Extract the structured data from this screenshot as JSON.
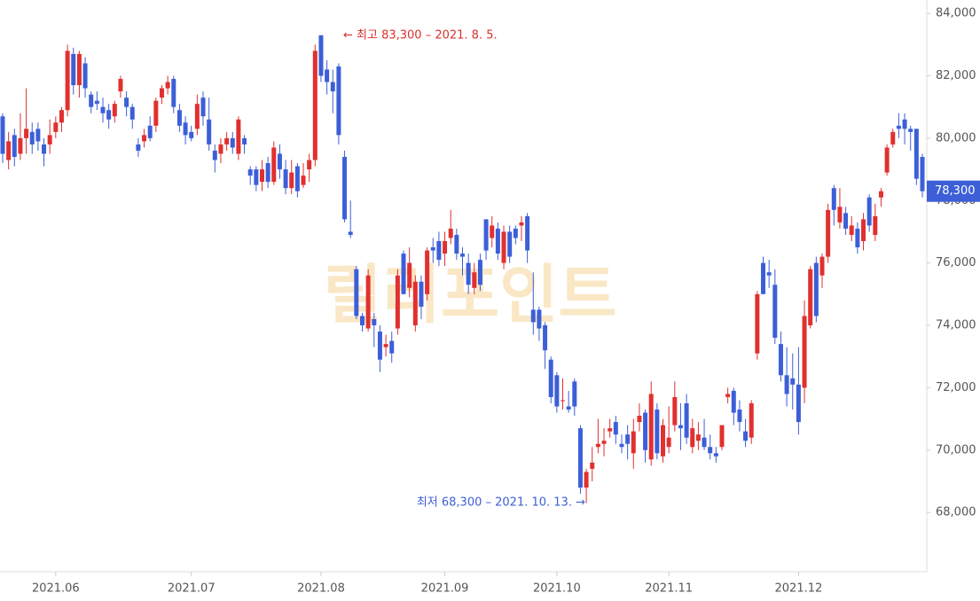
{
  "chart_data": {
    "type": "candlestick",
    "ylim": [
      66100,
      84430
    ],
    "yticks": [
      {
        "value": 68000,
        "label": "68,000"
      },
      {
        "value": 70000,
        "label": "70,000"
      },
      {
        "value": 72000,
        "label": "72,000"
      },
      {
        "value": 74000,
        "label": "74,000"
      },
      {
        "value": 76000,
        "label": "76,000"
      },
      {
        "value": 78000,
        "label": "78,000"
      },
      {
        "value": 80000,
        "label": "80,000"
      },
      {
        "value": 82000,
        "label": "82,000"
      },
      {
        "value": 84000,
        "label": "84,000"
      }
    ],
    "xticks": [
      {
        "value": 9,
        "label": "2021.06"
      },
      {
        "value": 32,
        "label": "2021.07"
      },
      {
        "value": 54,
        "label": "2021.08"
      },
      {
        "value": 75,
        "label": "2021.09"
      },
      {
        "value": 94,
        "label": "2021.10"
      },
      {
        "value": 113,
        "label": "2021.11"
      },
      {
        "value": 135,
        "label": "2021.12"
      }
    ],
    "up_color": "#e0302f",
    "down_color": "#3c5fd8",
    "open": [
      80700,
      79300,
      80100,
      79500,
      80000,
      80200,
      80300,
      79800,
      79800,
      80200,
      80500,
      80900,
      82700,
      81700,
      82400,
      81400,
      81200,
      81000,
      80900,
      80700,
      81500,
      81300,
      81000,
      79800,
      79900,
      80400,
      80400,
      81300,
      81600,
      81900,
      80900,
      80500,
      80200,
      80300,
      81300,
      80600,
      79600,
      79500,
      79800,
      80000,
      79500,
      80000,
      79000,
      79000,
      78600,
      79200,
      78600,
      79500,
      79000,
      78400,
      79100,
      78500,
      79000,
      79300,
      83300,
      82200,
      81800,
      82300,
      79400,
      77000,
      75800,
      74300,
      73900,
      74200,
      73800,
      73300,
      73500,
      73900,
      76300,
      75200,
      74000,
      75400,
      75000,
      76500,
      76700,
      76300,
      76800,
      76900,
      76300,
      76000,
      75200,
      76100,
      77400,
      76800,
      77100,
      76000,
      77000,
      77100,
      77200,
      77500,
      74500,
      74500,
      74000,
      72900,
      72400,
      71600,
      71400,
      72200,
      70700,
      68800,
      69400,
      70100,
      70200,
      70600,
      70900,
      70200,
      70500,
      69900,
      70900,
      71200,
      69700,
      71300,
      69800,
      70100,
      70800,
      70800,
      71500,
      70100,
      70300,
      70400,
      70100,
      69900,
      70100,
      71700,
      71900,
      71300,
      70600,
      70400,
      73100,
      76000,
      75700,
      75300,
      73400,
      72400,
      72300,
      72100,
      72000,
      74000,
      76000,
      75600,
      76200,
      78400,
      77300,
      77600,
      76900,
      77100,
      76700,
      78100,
      76900,
      78100,
      78900,
      79800,
      80400,
      80600,
      80300,
      80300,
      79400
    ],
    "high": [
      80800,
      80200,
      80300,
      80800,
      81600,
      80500,
      80500,
      80000,
      80600,
      80700,
      81000,
      83000,
      82900,
      82800,
      82600,
      81500,
      81500,
      81300,
      81100,
      81200,
      82000,
      81500,
      81100,
      80000,
      80300,
      80700,
      81300,
      81700,
      82000,
      82000,
      81100,
      80700,
      80400,
      81400,
      81500,
      81300,
      79800,
      80000,
      80200,
      80200,
      80700,
      80100,
      79100,
      79100,
      79300,
      79400,
      79900,
      79800,
      79300,
      79300,
      79200,
      79200,
      79500,
      83000,
      83300,
      82500,
      82200,
      82400,
      79600,
      78000,
      75900,
      74400,
      75800,
      74400,
      74000,
      73700,
      73800,
      75800,
      76400,
      76500,
      75600,
      75600,
      76500,
      76800,
      77000,
      77000,
      77700,
      77100,
      76500,
      76300,
      76000,
      76300,
      77400,
      77500,
      77300,
      77200,
      77200,
      77200,
      77500,
      77600,
      75700,
      74600,
      74100,
      73000,
      72500,
      72300,
      71900,
      72300,
      70800,
      69400,
      70100,
      71000,
      70700,
      71000,
      71100,
      70500,
      70800,
      71000,
      71500,
      71300,
      72200,
      71500,
      71000,
      71400,
      72200,
      71500,
      71800,
      71000,
      70900,
      71000,
      70500,
      70100,
      70800,
      72000,
      72000,
      71600,
      71000,
      71600,
      75100,
      76200,
      76100,
      75800,
      73800,
      73300,
      73100,
      73300,
      74800,
      75900,
      76200,
      76300,
      77900,
      78500,
      78400,
      77800,
      77500,
      77300,
      77600,
      78200,
      77900,
      78400,
      79800,
      80300,
      80800,
      80800,
      80400,
      80300,
      79500
    ],
    "low": [
      79200,
      79000,
      79100,
      79300,
      79500,
      79500,
      79600,
      79100,
      79500,
      80000,
      80200,
      80700,
      81400,
      81300,
      81300,
      80800,
      80900,
      80500,
      80300,
      80500,
      81300,
      80700,
      80300,
      79400,
      79700,
      79900,
      80200,
      81100,
      81400,
      80800,
      80200,
      79800,
      79900,
      80100,
      80400,
      79600,
      78900,
      79200,
      79600,
      79500,
      79300,
      79500,
      78500,
      78300,
      78300,
      78400,
      78500,
      78700,
      78200,
      78200,
      78100,
      78400,
      78600,
      79100,
      81800,
      81400,
      80800,
      79800,
      77300,
      76800,
      74200,
      73800,
      73800,
      73300,
      72500,
      73000,
      72800,
      73700,
      75000,
      74900,
      73800,
      74200,
      74800,
      76000,
      75900,
      75900,
      76600,
      76100,
      75600,
      75000,
      75000,
      75100,
      76100,
      76500,
      76100,
      75800,
      76000,
      76600,
      76700,
      76000,
      73700,
      73500,
      72600,
      71500,
      71200,
      71300,
      71200,
      71100,
      68600,
      68300,
      69000,
      69900,
      69800,
      70400,
      70200,
      69900,
      69700,
      69400,
      70600,
      69600,
      69500,
      69700,
      69600,
      69900,
      70600,
      70000,
      70200,
      69900,
      70000,
      70000,
      69700,
      69600,
      70000,
      71500,
      70800,
      70600,
      70100,
      70200,
      72900,
      75000,
      75200,
      73400,
      72200,
      71400,
      71300,
      70500,
      71500,
      73900,
      74100,
      75200,
      76000,
      77200,
      77100,
      76900,
      76700,
      76300,
      76400,
      77000,
      76700,
      77800,
      78800,
      79700,
      80000,
      79800,
      79600,
      78500,
      78100
    ],
    "close": [
      79500,
      79900,
      79400,
      80000,
      80300,
      79800,
      79900,
      79500,
      80100,
      80500,
      80900,
      82800,
      81700,
      82700,
      81600,
      81000,
      81100,
      80800,
      80600,
      81100,
      81900,
      81000,
      80600,
      79600,
      80100,
      80000,
      81200,
      81600,
      81800,
      81000,
      80400,
      80100,
      80000,
      81100,
      80700,
      79800,
      79300,
      79800,
      80000,
      79700,
      80600,
      79800,
      78800,
      78500,
      79000,
      78600,
      79700,
      79000,
      78400,
      78900,
      78300,
      78800,
      79300,
      82800,
      82000,
      81800,
      81500,
      80100,
      77400,
      76900,
      74300,
      74000,
      75600,
      74000,
      72900,
      73400,
      73100,
      75600,
      75000,
      76000,
      75400,
      74600,
      76400,
      76400,
      76100,
      76700,
      77100,
      76300,
      76200,
      75300,
      75700,
      75300,
      76400,
      77200,
      76300,
      77000,
      76200,
      76800,
      77300,
      76400,
      74100,
      73900,
      73200,
      71700,
      71400,
      71600,
      71300,
      71400,
      68800,
      69300,
      69600,
      70200,
      70300,
      70700,
      70500,
      70100,
      70200,
      70600,
      71100,
      70000,
      71800,
      69900,
      70800,
      70400,
      71700,
      70700,
      70400,
      70700,
      70500,
      70100,
      69900,
      69800,
      70800,
      71800,
      71200,
      70900,
      70300,
      71500,
      75000,
      75000,
      75600,
      73600,
      72400,
      71800,
      72100,
      70900,
      74300,
      75800,
      74300,
      76200,
      77700,
      77700,
      77800,
      77100,
      77200,
      76500,
      77400,
      77200,
      77500,
      78300,
      79700,
      80200,
      80300,
      80300,
      80200,
      78700,
      78300
    ],
    "high_annotation": "← 최고 83,300 – 2021. 8. 5.",
    "low_annotation": "최저 68,300 – 2021. 10. 13. →",
    "last_price": {
      "value": 78300,
      "label": "78,300"
    },
    "watermark": "릴리포인트"
  }
}
